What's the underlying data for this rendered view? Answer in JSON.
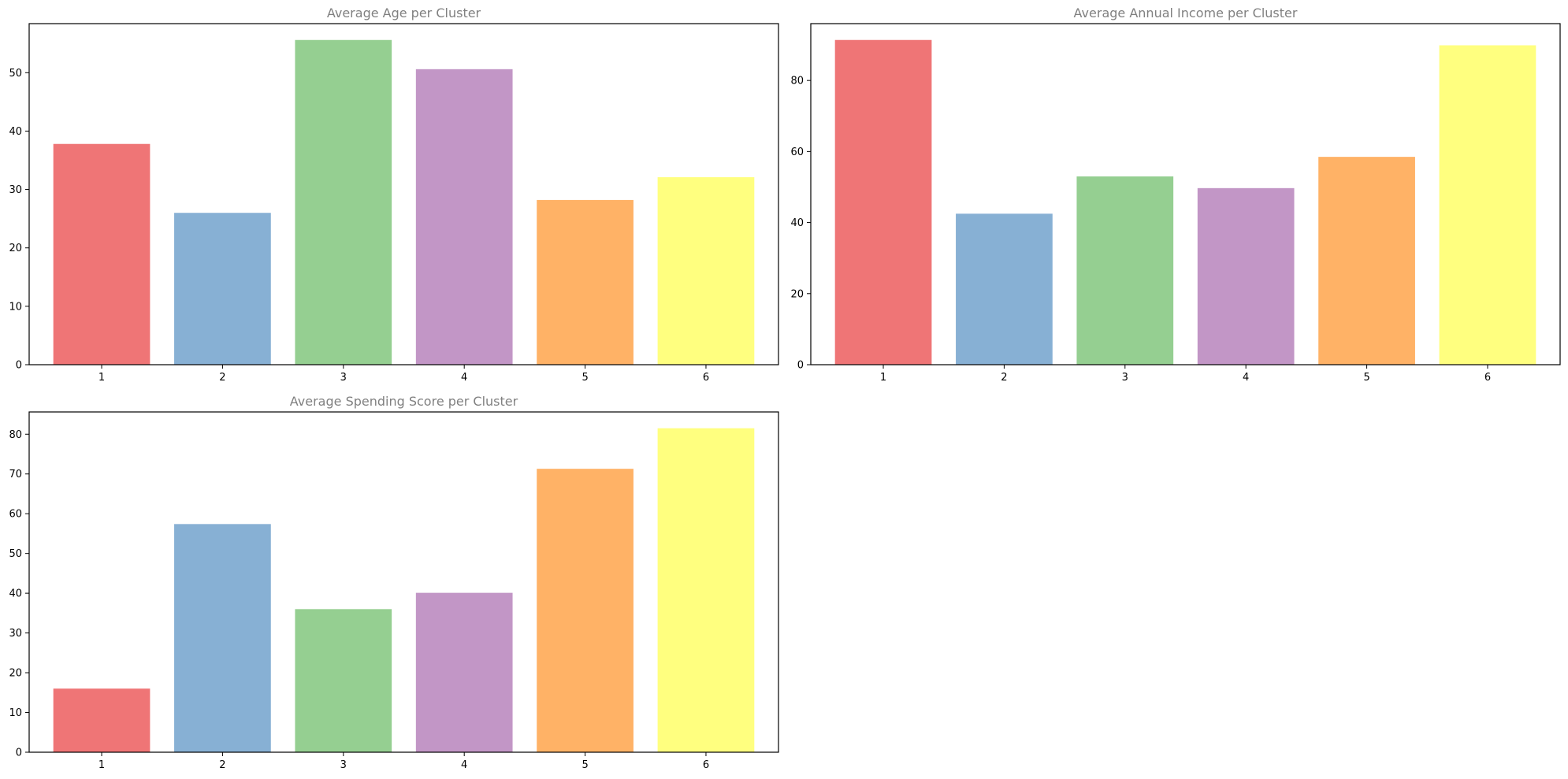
{
  "chart_data": [
    {
      "type": "bar",
      "title": "Average Age per Cluster",
      "xlabel": "",
      "ylabel": "",
      "categories": [
        "1",
        "2",
        "3",
        "4",
        "5",
        "6"
      ],
      "values": [
        37.8,
        26.0,
        55.6,
        50.6,
        28.2,
        32.1
      ],
      "ylim": [
        0,
        58.4
      ],
      "yticks": [
        0,
        10,
        20,
        30,
        40,
        50
      ],
      "colors": [
        "#ef7576",
        "#87b0d4",
        "#95cf91",
        "#c296c6",
        "#ffb266",
        "#ffff7f"
      ],
      "grid": false
    },
    {
      "type": "bar",
      "title": "Average Annual Income per Cluster",
      "xlabel": "",
      "ylabel": "",
      "categories": [
        "1",
        "2",
        "3",
        "4",
        "5",
        "6"
      ],
      "values": [
        91.4,
        42.5,
        53.0,
        49.7,
        58.5,
        89.9
      ],
      "ylim": [
        0,
        96.0
      ],
      "yticks": [
        0,
        20,
        40,
        60,
        80
      ],
      "colors": [
        "#ef7576",
        "#87b0d4",
        "#95cf91",
        "#c296c6",
        "#ffb266",
        "#ffff7f"
      ],
      "grid": false
    },
    {
      "type": "bar",
      "title": "Average Spending Score per Cluster",
      "xlabel": "",
      "ylabel": "",
      "categories": [
        "1",
        "2",
        "3",
        "4",
        "5",
        "6"
      ],
      "values": [
        16.0,
        57.4,
        36.0,
        40.1,
        71.3,
        81.5
      ],
      "ylim": [
        0,
        85.6
      ],
      "yticks": [
        0,
        10,
        20,
        30,
        40,
        50,
        60,
        70,
        80
      ],
      "colors": [
        "#ef7576",
        "#87b0d4",
        "#95cf91",
        "#c296c6",
        "#ffb266",
        "#ffff7f"
      ],
      "grid": false
    }
  ]
}
